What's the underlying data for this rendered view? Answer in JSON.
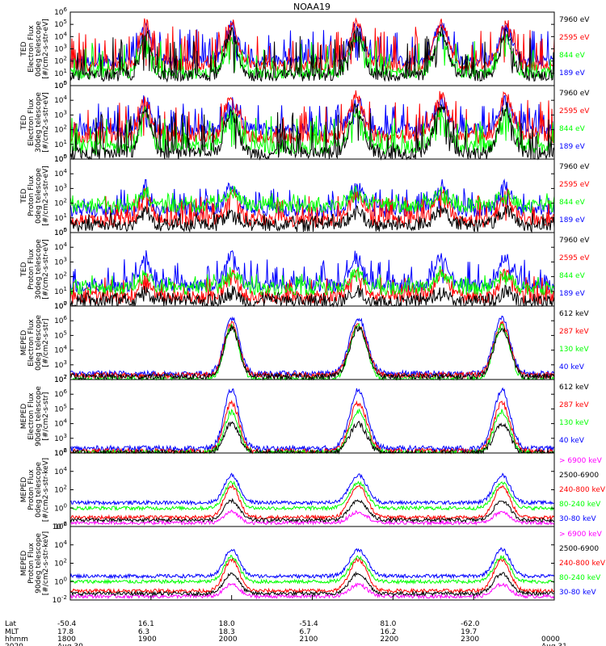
{
  "title": "NOAA19",
  "colors": {
    "blue": "#0000ff",
    "red": "#ff0000",
    "green": "#00ff00",
    "black": "#000000",
    "magenta": "#ff00ff"
  },
  "panels": [
    {
      "ylabel": [
        "TED",
        "Electron Flux",
        "0deg telescope",
        "[#/cm2-s-str-eV]"
      ],
      "yticks": [
        "10^0",
        "10^1",
        "10^2",
        "10^3",
        "10^4",
        "10^5",
        "10^6"
      ],
      "ylim": [
        0,
        6
      ],
      "legend": [
        {
          "label": "7960 eV",
          "color": "#000000"
        },
        {
          "label": "2595 eV",
          "color": "#ff0000"
        },
        {
          "label": "844 eV",
          "color": "#00ff00"
        },
        {
          "label": "189 eV",
          "color": "#0000ff"
        }
      ]
    },
    {
      "ylabel": [
        "TED",
        "Electron Flux",
        "30deg telescope",
        "[#/cm2-s-str-eV]"
      ],
      "yticks": [
        "10^0",
        "10^1",
        "10^2",
        "10^3",
        "10^4",
        "10^5"
      ],
      "ylim": [
        0,
        5
      ],
      "legend": [
        {
          "label": "7960 eV",
          "color": "#000000"
        },
        {
          "label": "2595 eV",
          "color": "#ff0000"
        },
        {
          "label": "844 eV",
          "color": "#00ff00"
        },
        {
          "label": "189 eV",
          "color": "#0000ff"
        }
      ]
    },
    {
      "ylabel": [
        "TED",
        "Proton Flux",
        "0deg telescope",
        "[#/cm2-s-str-eV]"
      ],
      "yticks": [
        "10^0",
        "10^1",
        "10^2",
        "10^3",
        "10^4",
        "10^5"
      ],
      "ylim": [
        0,
        5
      ],
      "legend": [
        {
          "label": "7960 eV",
          "color": "#000000"
        },
        {
          "label": "2595 eV",
          "color": "#ff0000"
        },
        {
          "label": "844 eV",
          "color": "#00ff00"
        },
        {
          "label": "189 eV",
          "color": "#0000ff"
        }
      ]
    },
    {
      "ylabel": [
        "TED",
        "Proton Flux",
        "30deg telescope",
        "[#/cm2-s-str-eV]"
      ],
      "yticks": [
        "10^0",
        "10^1",
        "10^2",
        "10^3",
        "10^4",
        "10^5"
      ],
      "ylim": [
        0,
        5
      ],
      "legend": [
        {
          "label": "7960 eV",
          "color": "#000000"
        },
        {
          "label": "2595 eV",
          "color": "#ff0000"
        },
        {
          "label": "844 eV",
          "color": "#00ff00"
        },
        {
          "label": "189 eV",
          "color": "#0000ff"
        }
      ]
    },
    {
      "ylabel": [
        "MEPED",
        "Electron Flux",
        "0deg telescope",
        "[#/cm2-s-str]"
      ],
      "yticks": [
        "10^2",
        "10^3",
        "10^4",
        "10^5",
        "10^6",
        "10^7"
      ],
      "ylim": [
        2,
        7
      ],
      "legend": [
        {
          "label": "612 keV",
          "color": "#000000"
        },
        {
          "label": "287 keV",
          "color": "#ff0000"
        },
        {
          "label": "130 keV",
          "color": "#00ff00"
        },
        {
          "label": "40 keV",
          "color": "#0000ff"
        }
      ]
    },
    {
      "ylabel": [
        "MEPED",
        "Electron Flux",
        "90deg telescope",
        "[#/cm2-s-str]"
      ],
      "yticks": [
        "10^2",
        "10^3",
        "10^4",
        "10^5",
        "10^6",
        "10^7"
      ],
      "ylim": [
        2,
        7
      ],
      "legend": [
        {
          "label": "612 keV",
          "color": "#000000"
        },
        {
          "label": "287 keV",
          "color": "#ff0000"
        },
        {
          "label": "130 keV",
          "color": "#00ff00"
        },
        {
          "label": "40 keV",
          "color": "#0000ff"
        }
      ]
    },
    {
      "ylabel": [
        "MEPED",
        "Proton Flux",
        "0deg telescope",
        "[#/cm2-s-str-keV]"
      ],
      "yticks": [
        "10^-2",
        "10^0",
        "10^2",
        "10^4",
        "10^6"
      ],
      "ylim": [
        -2,
        6
      ],
      "legend": [
        {
          "label": "> 6900 keV",
          "color": "#ff00ff"
        },
        {
          "label": "2500-6900",
          "color": "#000000"
        },
        {
          "label": "240-800 keV",
          "color": "#ff0000"
        },
        {
          "label": "80-240 keV",
          "color": "#00ff00"
        },
        {
          "label": "30-80 keV",
          "color": "#0000ff"
        }
      ]
    },
    {
      "ylabel": [
        "MEPED",
        "Proton Flux",
        "90deg telescope",
        "[#/cm2-s-str-keV]"
      ],
      "yticks": [
        "10^-2",
        "10^0",
        "10^2",
        "10^4",
        "10^6"
      ],
      "ylim": [
        -2,
        6
      ],
      "legend": [
        {
          "label": "> 6900 keV",
          "color": "#ff00ff"
        },
        {
          "label": "2500-6900",
          "color": "#000000"
        },
        {
          "label": "240-800 keV",
          "color": "#ff0000"
        },
        {
          "label": "80-240 keV",
          "color": "#00ff00"
        },
        {
          "label": "30-80 keV",
          "color": "#0000ff"
        }
      ]
    }
  ],
  "xaxis": {
    "row_labels": [
      "Lat",
      "MLT",
      "hhmm",
      "2020"
    ],
    "ticks": [
      {
        "lat": "-50.4",
        "mlt": "17.8",
        "hhmm": "1800",
        "date": "Aug 30"
      },
      {
        "lat": "16.1",
        "mlt": "6.3",
        "hhmm": "1900",
        "date": ""
      },
      {
        "lat": "18.0",
        "mlt": "18.3",
        "hhmm": "2000",
        "date": ""
      },
      {
        "lat": "-51.4",
        "mlt": "6.7",
        "hhmm": "2100",
        "date": ""
      },
      {
        "lat": "81.0",
        "mlt": "16.2",
        "hhmm": "2200",
        "date": ""
      },
      {
        "lat": "-62.0",
        "mlt": "19.7",
        "hhmm": "2300",
        "date": ""
      },
      {
        "lat": "",
        "mlt": "",
        "hhmm": "0000",
        "date": "Aug 31"
      }
    ],
    "range_hours": [
      18,
      24
    ]
  },
  "chart_data": {
    "type": "line",
    "x_unit": "hour UT",
    "passes": [
      {
        "center": 18.93,
        "halfwidth": 0.09
      },
      {
        "center": 20.0,
        "halfwidth": 0.11
      },
      {
        "center": 21.55,
        "halfwidth": 0.12
      },
      {
        "center": 22.6,
        "halfwidth": 0.12
      },
      {
        "center": 23.4,
        "halfwidth": 0.11
      }
    ],
    "hemispheric_peaks": [
      {
        "center": 20.0,
        "halfwidth": 0.13
      },
      {
        "center": 21.57,
        "halfwidth": 0.15
      },
      {
        "center": 23.35,
        "halfwidth": 0.14
      }
    ],
    "panel_levels": [
      {
        "blue": [
          2.0,
          4.9
        ],
        "red": [
          1.6,
          5.2
        ],
        "green": [
          1.0,
          4.0
        ],
        "black": [
          0.8,
          4.4
        ]
      },
      {
        "blue": [
          2.0,
          4.0
        ],
        "red": [
          1.5,
          4.3
        ],
        "green": [
          0.8,
          3.2
        ],
        "black": [
          0.4,
          3.5
        ]
      },
      {
        "blue": [
          1.5,
          3.2
        ],
        "red": [
          0.8,
          2.7
        ],
        "green": [
          1.8,
          2.8
        ],
        "black": [
          0.5,
          1.5
        ]
      },
      {
        "blue": [
          1.4,
          3.4
        ],
        "red": [
          0.6,
          2.2
        ],
        "green": [
          1.2,
          2.3
        ],
        "black": [
          0.3,
          1.0
        ]
      },
      {
        "blue": [
          2.4,
          6.2
        ],
        "red": [
          2.3,
          5.8
        ],
        "green": [
          2.0,
          5.6
        ],
        "black": [
          2.2,
          5.5
        ]
      },
      {
        "blue": [
          2.3,
          6.3
        ],
        "red": [
          2.1,
          5.4
        ],
        "green": [
          2.0,
          4.8
        ],
        "black": [
          2.0,
          4.0
        ]
      },
      {
        "blue": [
          0.6,
          3.6
        ],
        "red": [
          -1.0,
          2.4
        ],
        "green": [
          0.0,
          2.8
        ],
        "black": [
          -1.3,
          0.8
        ],
        "magenta": [
          -1.6,
          -0.4
        ]
      },
      {
        "blue": [
          0.6,
          3.5
        ],
        "red": [
          -1.0,
          2.4
        ],
        "green": [
          0.0,
          2.7
        ],
        "black": [
          -1.3,
          0.9
        ],
        "magenta": [
          -1.6,
          -0.3
        ]
      }
    ]
  }
}
